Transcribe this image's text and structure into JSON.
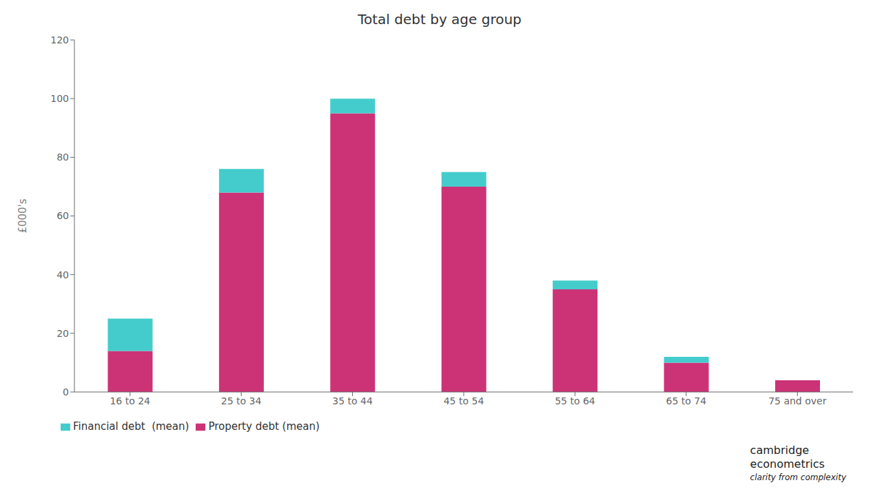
{
  "chart_data": {
    "type": "bar",
    "title": "Total debt by age group",
    "categories": [
      "16 to 24",
      "25 to 34",
      "35 to 44",
      "45 to 54",
      "55 to 64",
      "65 to 74",
      "75 and over"
    ],
    "series": [
      {
        "name": "Property debt (mean)",
        "color": "#CC3377",
        "values": [
          14,
          68,
          95,
          70,
          35,
          10,
          4
        ]
      },
      {
        "name": "Financial debt  (mean)",
        "color": "#44CCCC",
        "values": [
          11,
          8,
          5,
          5,
          3,
          2,
          0
        ]
      }
    ],
    "ylabel": "£000's",
    "ylim": [
      0,
      120
    ],
    "yticks": [
      0,
      20,
      40,
      60,
      80,
      100,
      120
    ],
    "stacked": true,
    "grid": false,
    "legend": "bottom left",
    "annotations": [
      "cambridge\neconometrics",
      "clarity from complexity"
    ]
  }
}
